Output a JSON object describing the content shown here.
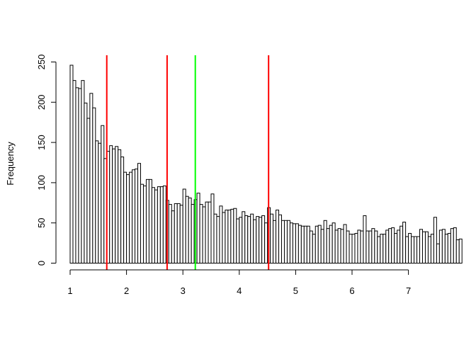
{
  "chart_data": {
    "type": "bar",
    "ylabel": "Frequency",
    "xlabel": "",
    "title": "",
    "xlim": [
      1.0,
      7.4
    ],
    "ylim": [
      0,
      250
    ],
    "bin_start": 1.0,
    "bin_width": 0.05,
    "x_ticks": [
      1,
      2,
      3,
      4,
      5,
      6,
      7
    ],
    "y_ticks": [
      0,
      50,
      100,
      150,
      200,
      250
    ],
    "values": [
      246,
      227,
      218,
      217,
      227,
      199,
      180,
      211,
      193,
      152,
      149,
      171,
      130,
      139,
      146,
      142,
      145,
      141,
      132,
      113,
      110,
      113,
      116,
      117,
      124,
      98,
      96,
      104,
      104,
      94,
      91,
      95,
      95,
      96,
      78,
      73,
      65,
      74,
      74,
      72,
      92,
      83,
      81,
      73,
      79,
      87,
      73,
      70,
      76,
      76,
      86,
      61,
      58,
      71,
      63,
      66,
      66,
      67,
      68,
      55,
      57,
      64,
      59,
      58,
      61,
      54,
      58,
      57,
      59,
      50,
      69,
      61,
      53,
      66,
      60,
      53,
      53,
      53,
      50,
      49,
      49,
      47,
      46,
      46,
      46,
      40,
      36,
      46,
      47,
      42,
      53,
      43,
      47,
      50,
      41,
      43,
      42,
      48,
      40,
      36,
      36,
      37,
      41,
      40,
      59,
      40,
      40,
      43,
      40,
      33,
      36,
      36,
      41,
      43,
      44,
      37,
      41,
      46,
      51,
      33,
      37,
      33,
      33,
      33,
      42,
      39,
      39,
      33,
      36,
      57,
      24,
      41,
      42,
      36,
      37,
      43,
      44,
      29,
      30
    ],
    "vlines": [
      {
        "x": 1.65,
        "color": "#ff0000"
      },
      {
        "x": 2.72,
        "color": "#ff0000"
      },
      {
        "x": 3.22,
        "color": "#00ff00"
      },
      {
        "x": 4.52,
        "color": "#ff0000"
      }
    ],
    "bar_fill": "#ffffff",
    "bar_stroke": "#000000",
    "grid": false,
    "legend": "none"
  }
}
